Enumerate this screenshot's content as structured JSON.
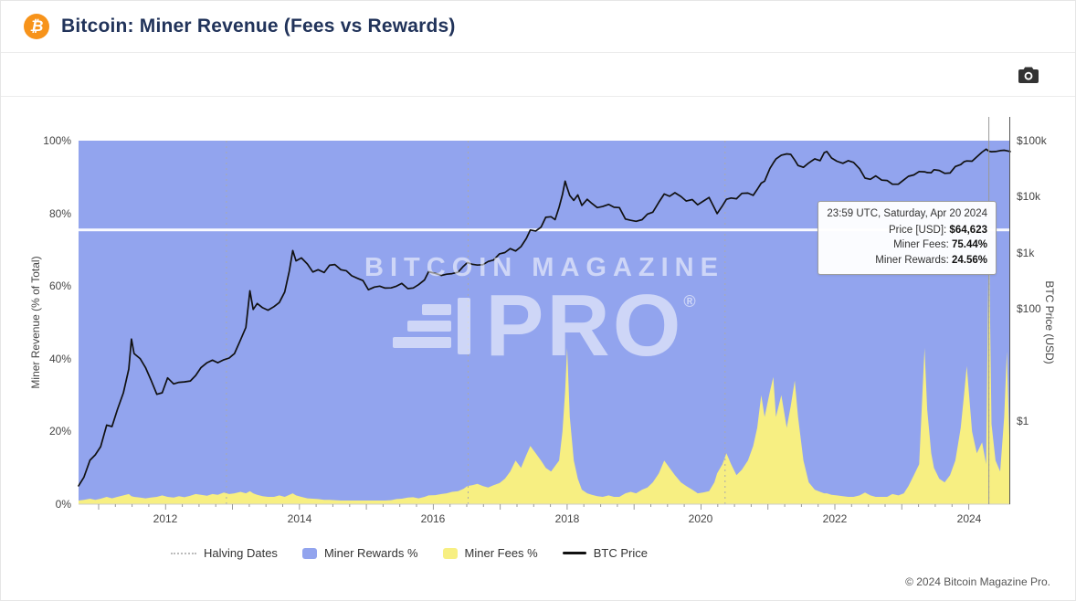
{
  "header": {
    "title": "Bitcoin: Miner Revenue (Fees vs Rewards)",
    "logo_symbol": "₿"
  },
  "watermark": {
    "line1": "BITCOIN MAGAZINE",
    "line2": "PRO",
    "registered": "®"
  },
  "tooltip": {
    "timestamp": "23:59 UTC, Saturday, Apr 20 2024",
    "rows": [
      {
        "label": "Price [USD]: ",
        "value": "$64,623"
      },
      {
        "label": "Miner Fees: ",
        "value": "75.44%"
      },
      {
        "label": "Miner Rewards: ",
        "value": "24.56%"
      }
    ]
  },
  "legend": {
    "items": [
      {
        "label": "Halving Dates",
        "type": "dashed",
        "color": "#bbbbbb"
      },
      {
        "label": "Miner Rewards %",
        "type": "area",
        "color": "#92a4ee"
      },
      {
        "label": "Miner Fees %",
        "type": "area",
        "color": "#f7ef82"
      },
      {
        "label": "BTC Price",
        "type": "line",
        "color": "#111111"
      }
    ]
  },
  "footer": {
    "copyright": "© 2024 Bitcoin Magazine Pro."
  },
  "chart_data": {
    "type": "area",
    "title": "Bitcoin: Miner Revenue (Fees vs Rewards)",
    "x_range": [
      2010.7,
      2024.62
    ],
    "x_ticks": [
      2012,
      2014,
      2016,
      2018,
      2020,
      2022,
      2024
    ],
    "y_left": {
      "label": "Miner Revenue (% of Total)",
      "min": 0,
      "max": 100,
      "ticks": [
        0,
        20,
        40,
        60,
        80,
        100
      ],
      "tick_suffix": "%"
    },
    "y_right": {
      "label": "BTC Price (USD)",
      "scale": "log",
      "min": 0.033,
      "max": 100000,
      "ticks": [
        {
          "value": 100000,
          "label": "$100k"
        },
        {
          "value": 10000,
          "label": "$10k"
        },
        {
          "value": 1000,
          "label": "$1k"
        },
        {
          "value": 100,
          "label": "$100"
        },
        {
          "value": 1,
          "label": "$1"
        }
      ]
    },
    "halving_dates_x": [
      2012.91,
      2016.52,
      2020.36,
      2024.3
    ],
    "crosshair": {
      "x": 2024.3,
      "percent": 75.44,
      "price": 64623
    },
    "colors": {
      "rewards": "#92a4ee",
      "fees": "#f7ef82",
      "price": "#111111",
      "halving": "#aaaaaa",
      "crosshair_line": "#ffffff",
      "grid": "#cccccc"
    },
    "series": [
      {
        "name": "Miner Rewards %",
        "type": "area",
        "color": "#92a4ee",
        "derived": "100 - fees"
      },
      {
        "name": "Miner Fees %",
        "type": "area",
        "color": "#f7ef82",
        "column": 2
      },
      {
        "name": "BTC Price",
        "type": "line",
        "color": "#111111",
        "column": 1
      }
    ],
    "points_format": [
      "year",
      "btc_price_usd",
      "miner_fees_pct"
    ],
    "points": [
      [
        2010.7,
        0.07,
        1.0
      ],
      [
        2010.78,
        0.1,
        1.2
      ],
      [
        2010.87,
        0.2,
        1.5
      ],
      [
        2010.95,
        0.25,
        1.2
      ],
      [
        2011.03,
        0.35,
        1.5
      ],
      [
        2011.12,
        0.85,
        2.0
      ],
      [
        2011.2,
        0.8,
        1.6
      ],
      [
        2011.28,
        1.6,
        2.0
      ],
      [
        2011.37,
        3.2,
        2.4
      ],
      [
        2011.45,
        8.5,
        2.8
      ],
      [
        2011.49,
        29,
        2.2
      ],
      [
        2011.53,
        16,
        2.0
      ],
      [
        2011.62,
        13,
        1.8
      ],
      [
        2011.7,
        9,
        1.6
      ],
      [
        2011.78,
        5.5,
        1.8
      ],
      [
        2011.87,
        3.0,
        2.0
      ],
      [
        2011.95,
        3.2,
        2.4
      ],
      [
        2012.03,
        5.9,
        2.0
      ],
      [
        2012.12,
        4.6,
        1.8
      ],
      [
        2012.2,
        4.9,
        2.2
      ],
      [
        2012.28,
        5.0,
        1.9
      ],
      [
        2012.37,
        5.2,
        2.3
      ],
      [
        2012.45,
        6.5,
        2.8
      ],
      [
        2012.53,
        9.0,
        2.6
      ],
      [
        2012.62,
        11.0,
        2.3
      ],
      [
        2012.7,
        12.2,
        2.8
      ],
      [
        2012.78,
        11.0,
        2.6
      ],
      [
        2012.87,
        12.4,
        3.2
      ],
      [
        2012.95,
        13.3,
        2.8
      ],
      [
        2013.03,
        16,
        3.0
      ],
      [
        2013.12,
        28,
        3.4
      ],
      [
        2013.2,
        47,
        3.0
      ],
      [
        2013.26,
        210,
        3.6
      ],
      [
        2013.31,
        98,
        3.0
      ],
      [
        2013.37,
        125,
        2.6
      ],
      [
        2013.45,
        105,
        2.2
      ],
      [
        2013.53,
        95,
        2.0
      ],
      [
        2013.62,
        110,
        2.0
      ],
      [
        2013.7,
        130,
        2.4
      ],
      [
        2013.78,
        200,
        2.0
      ],
      [
        2013.85,
        480,
        2.6
      ],
      [
        2013.9,
        1100,
        3.0
      ],
      [
        2013.95,
        720,
        2.4
      ],
      [
        2014.03,
        810,
        2.0
      ],
      [
        2014.12,
        630,
        1.6
      ],
      [
        2014.2,
        455,
        1.5
      ],
      [
        2014.28,
        500,
        1.4
      ],
      [
        2014.37,
        445,
        1.2
      ],
      [
        2014.45,
        600,
        1.2
      ],
      [
        2014.53,
        620,
        1.1
      ],
      [
        2014.62,
        500,
        1.0
      ],
      [
        2014.7,
        480,
        1.0
      ],
      [
        2014.78,
        390,
        1.0
      ],
      [
        2014.87,
        350,
        1.0
      ],
      [
        2014.95,
        320,
        1.0
      ],
      [
        2015.03,
        220,
        1.0
      ],
      [
        2015.12,
        245,
        1.0
      ],
      [
        2015.2,
        255,
        1.0
      ],
      [
        2015.28,
        235,
        1.0
      ],
      [
        2015.37,
        237,
        1.1
      ],
      [
        2015.45,
        255,
        1.4
      ],
      [
        2015.53,
        285,
        1.5
      ],
      [
        2015.62,
        230,
        1.8
      ],
      [
        2015.7,
        236,
        1.9
      ],
      [
        2015.78,
        270,
        1.6
      ],
      [
        2015.87,
        330,
        2.0
      ],
      [
        2015.93,
        460,
        2.4
      ],
      [
        2016.03,
        430,
        2.5
      ],
      [
        2016.12,
        395,
        2.8
      ],
      [
        2016.2,
        416,
        3.0
      ],
      [
        2016.28,
        425,
        3.4
      ],
      [
        2016.37,
        450,
        3.6
      ],
      [
        2016.45,
        575,
        4.2
      ],
      [
        2016.51,
        670,
        5.0
      ],
      [
        2016.58,
        625,
        5.2
      ],
      [
        2016.66,
        605,
        5.6
      ],
      [
        2016.74,
        615,
        5.0
      ],
      [
        2016.82,
        700,
        4.6
      ],
      [
        2016.9,
        745,
        5.2
      ],
      [
        2016.99,
        960,
        5.8
      ],
      [
        2017.07,
        1010,
        7.0
      ],
      [
        2017.15,
        1190,
        9.0
      ],
      [
        2017.23,
        1080,
        12.0
      ],
      [
        2017.31,
        1290,
        10.0
      ],
      [
        2017.39,
        1800,
        13.5
      ],
      [
        2017.45,
        2550,
        16.0
      ],
      [
        2017.53,
        2450,
        14.0
      ],
      [
        2017.61,
        2870,
        12.0
      ],
      [
        2017.68,
        4300,
        10.0
      ],
      [
        2017.76,
        4400,
        9.0
      ],
      [
        2017.82,
        3900,
        10.5
      ],
      [
        2017.88,
        6500,
        12.0
      ],
      [
        2017.93,
        11000,
        20.0
      ],
      [
        2017.97,
        19000,
        31.0
      ],
      [
        2018.0,
        14500,
        43.0
      ],
      [
        2018.04,
        10500,
        24.0
      ],
      [
        2018.1,
        8600,
        12.0
      ],
      [
        2018.16,
        10800,
        7.0
      ],
      [
        2018.22,
        7000,
        4.0
      ],
      [
        2018.3,
        9000,
        3.0
      ],
      [
        2018.37,
        7600,
        2.6
      ],
      [
        2018.45,
        6400,
        2.2
      ],
      [
        2018.53,
        6700,
        2.0
      ],
      [
        2018.62,
        7300,
        2.4
      ],
      [
        2018.7,
        6500,
        2.0
      ],
      [
        2018.78,
        6400,
        2.0
      ],
      [
        2018.87,
        4000,
        3.0
      ],
      [
        2018.95,
        3800,
        3.4
      ],
      [
        2019.03,
        3650,
        3.0
      ],
      [
        2019.12,
        3900,
        4.0
      ],
      [
        2019.2,
        4900,
        4.6
      ],
      [
        2019.28,
        5300,
        6.0
      ],
      [
        2019.37,
        8000,
        8.5
      ],
      [
        2019.45,
        11200,
        12.0
      ],
      [
        2019.53,
        10200,
        10.0
      ],
      [
        2019.61,
        11800,
        8.0
      ],
      [
        2019.7,
        10100,
        6.0
      ],
      [
        2019.78,
        8400,
        5.0
      ],
      [
        2019.87,
        8900,
        4.0
      ],
      [
        2019.95,
        7200,
        3.0
      ],
      [
        2020.03,
        8300,
        3.2
      ],
      [
        2020.12,
        9700,
        3.6
      ],
      [
        2020.2,
        6300,
        6.0
      ],
      [
        2020.24,
        5000,
        8.5
      ],
      [
        2020.32,
        6900,
        11.0
      ],
      [
        2020.38,
        9000,
        14.0
      ],
      [
        2020.45,
        9500,
        11.0
      ],
      [
        2020.53,
        9200,
        8.0
      ],
      [
        2020.61,
        11500,
        9.5
      ],
      [
        2020.7,
        11600,
        12.0
      ],
      [
        2020.78,
        10600,
        16.0
      ],
      [
        2020.84,
        13500,
        21.0
      ],
      [
        2020.9,
        17500,
        30.0
      ],
      [
        2020.95,
        19000,
        24.0
      ],
      [
        2021.03,
        32000,
        31.0
      ],
      [
        2021.08,
        40000,
        35.0
      ],
      [
        2021.12,
        47000,
        24.0
      ],
      [
        2021.2,
        55000,
        30.0
      ],
      [
        2021.28,
        58000,
        21.0
      ],
      [
        2021.34,
        57000,
        27.0
      ],
      [
        2021.4,
        45000,
        34.0
      ],
      [
        2021.45,
        36000,
        24.0
      ],
      [
        2021.53,
        33500,
        12.0
      ],
      [
        2021.61,
        40000,
        6.0
      ],
      [
        2021.7,
        47500,
        4.0
      ],
      [
        2021.78,
        44000,
        3.4
      ],
      [
        2021.84,
        61000,
        3.0
      ],
      [
        2021.88,
        64000,
        3.0
      ],
      [
        2021.95,
        49000,
        2.6
      ],
      [
        2022.03,
        43000,
        2.4
      ],
      [
        2022.12,
        39500,
        2.2
      ],
      [
        2022.2,
        44000,
        2.0
      ],
      [
        2022.28,
        41000,
        2.0
      ],
      [
        2022.37,
        31500,
        2.4
      ],
      [
        2022.45,
        21500,
        3.2
      ],
      [
        2022.53,
        20500,
        2.4
      ],
      [
        2022.61,
        23500,
        2.0
      ],
      [
        2022.7,
        19800,
        2.0
      ],
      [
        2022.78,
        19500,
        2.0
      ],
      [
        2022.86,
        16700,
        2.8
      ],
      [
        2022.95,
        16800,
        2.4
      ],
      [
        2023.03,
        20000,
        3.0
      ],
      [
        2023.1,
        23200,
        5.0
      ],
      [
        2023.18,
        24500,
        8.0
      ],
      [
        2023.26,
        28200,
        11.0
      ],
      [
        2023.34,
        27800,
        43.0
      ],
      [
        2023.38,
        27000,
        26.0
      ],
      [
        2023.44,
        26800,
        14.0
      ],
      [
        2023.48,
        30300,
        10.0
      ],
      [
        2023.56,
        29500,
        7.0
      ],
      [
        2023.64,
        26100,
        6.0
      ],
      [
        2023.72,
        26500,
        8.0
      ],
      [
        2023.8,
        34600,
        12.0
      ],
      [
        2023.88,
        37500,
        21.0
      ],
      [
        2023.93,
        42000,
        30.0
      ],
      [
        2023.97,
        43500,
        38.0
      ],
      [
        2024.05,
        43000,
        20.0
      ],
      [
        2024.12,
        51500,
        14.0
      ],
      [
        2024.2,
        62500,
        17.0
      ],
      [
        2024.26,
        70500,
        11.0
      ],
      [
        2024.3,
        64623,
        75.44
      ],
      [
        2024.34,
        63500,
        22.0
      ],
      [
        2024.4,
        64000,
        12.0
      ],
      [
        2024.47,
        66500,
        9.0
      ],
      [
        2024.53,
        67500,
        24.0
      ],
      [
        2024.57,
        66000,
        42.0
      ],
      [
        2024.62,
        64000,
        10.0
      ]
    ]
  }
}
